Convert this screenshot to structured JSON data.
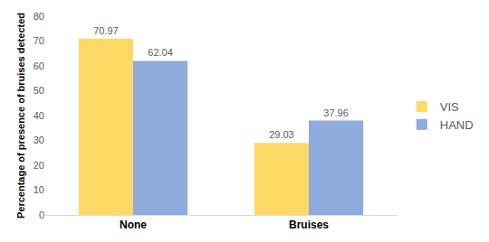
{
  "chart_data": {
    "type": "bar",
    "y_label": "Percentage of presence of bruises detected",
    "categories": [
      "None",
      "Bruises"
    ],
    "series": [
      {
        "name": "VIS",
        "color": "#FFD966",
        "values": [
          70.97,
          29.03
        ]
      },
      {
        "name": "HAND",
        "color": "#8FAADC",
        "values": [
          62.04,
          37.96
        ]
      }
    ],
    "ylim": [
      0,
      80
    ],
    "yticks": [
      0,
      10,
      20,
      30,
      40,
      50,
      60,
      70,
      80
    ],
    "grid": false,
    "legend": "right",
    "data_labels": true
  }
}
